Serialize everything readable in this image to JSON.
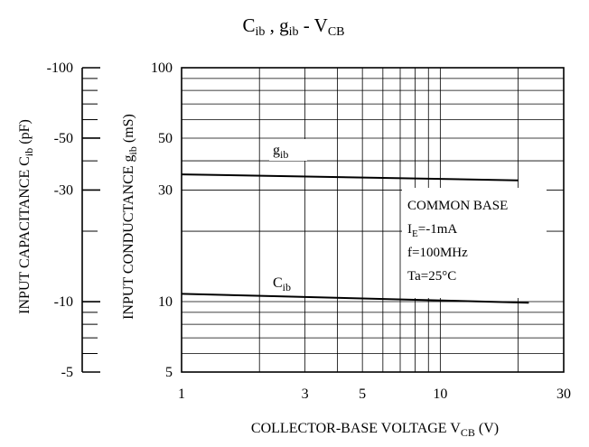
{
  "chart_data": {
    "type": "line",
    "title": {
      "c": "C",
      "c_sub": "ib",
      "sep": " , ",
      "g": "g",
      "g_sub": "ib",
      "dash": " - ",
      "v": "V",
      "v_sub": "CB"
    },
    "x_scale": "log",
    "xlim": [
      1,
      30
    ],
    "ylim": [
      5,
      100
    ],
    "y_scale": "log",
    "x_ticks": [
      {
        "value": 1,
        "label": "1"
      },
      {
        "value": 3,
        "label": "3"
      },
      {
        "value": 5,
        "label": "5"
      },
      {
        "value": 10,
        "label": "10"
      },
      {
        "value": 30,
        "label": "30"
      }
    ],
    "x_grid": [
      1,
      2,
      3,
      4,
      5,
      6,
      7,
      8,
      9,
      10,
      20,
      30
    ],
    "y_ticks": [
      {
        "value": 5,
        "label": "5"
      },
      {
        "value": 10,
        "label": "10"
      },
      {
        "value": 30,
        "label": "30"
      },
      {
        "value": 50,
        "label": "50"
      },
      {
        "value": 100,
        "label": "100"
      }
    ],
    "y_grid": [
      5,
      6,
      7,
      8,
      9,
      10,
      20,
      30,
      40,
      50,
      60,
      70,
      80,
      90,
      100
    ],
    "cap_ticks": [
      {
        "value": 100,
        "label": "-100"
      },
      {
        "value": 50,
        "label": "-50"
      },
      {
        "value": 30,
        "label": "-30"
      },
      {
        "value": 10,
        "label": "-10"
      },
      {
        "value": 5,
        "label": "-5"
      }
    ],
    "cap_minor": [
      5,
      6,
      7,
      8,
      9,
      10,
      20,
      30,
      40,
      50,
      60,
      70,
      80,
      90,
      100
    ],
    "xlabel": {
      "text": "COLLECTOR-BASE VOLTAGE V",
      "sub": "CB",
      "unit": " (V)"
    },
    "ylabel_g": {
      "text": "INPUT CONDUCTANCE g",
      "sub": "ib",
      "unit": " (mS)"
    },
    "ylabel_c": {
      "text": "INPUT CAPACITANCE C",
      "sub": "ib",
      "unit": " (pF)"
    },
    "series": [
      {
        "name": "g",
        "name_sub": "ib",
        "x": [
          1,
          20
        ],
        "y": [
          35,
          33
        ]
      },
      {
        "name": "C",
        "name_sub": "ib",
        "x": [
          1,
          22
        ],
        "y": [
          10.8,
          9.9
        ]
      }
    ],
    "legend_box": [
      "COMMON BASE",
      "I",
      "E",
      "=-1mA",
      "f=100MHz",
      "Ta=25°C"
    ]
  }
}
